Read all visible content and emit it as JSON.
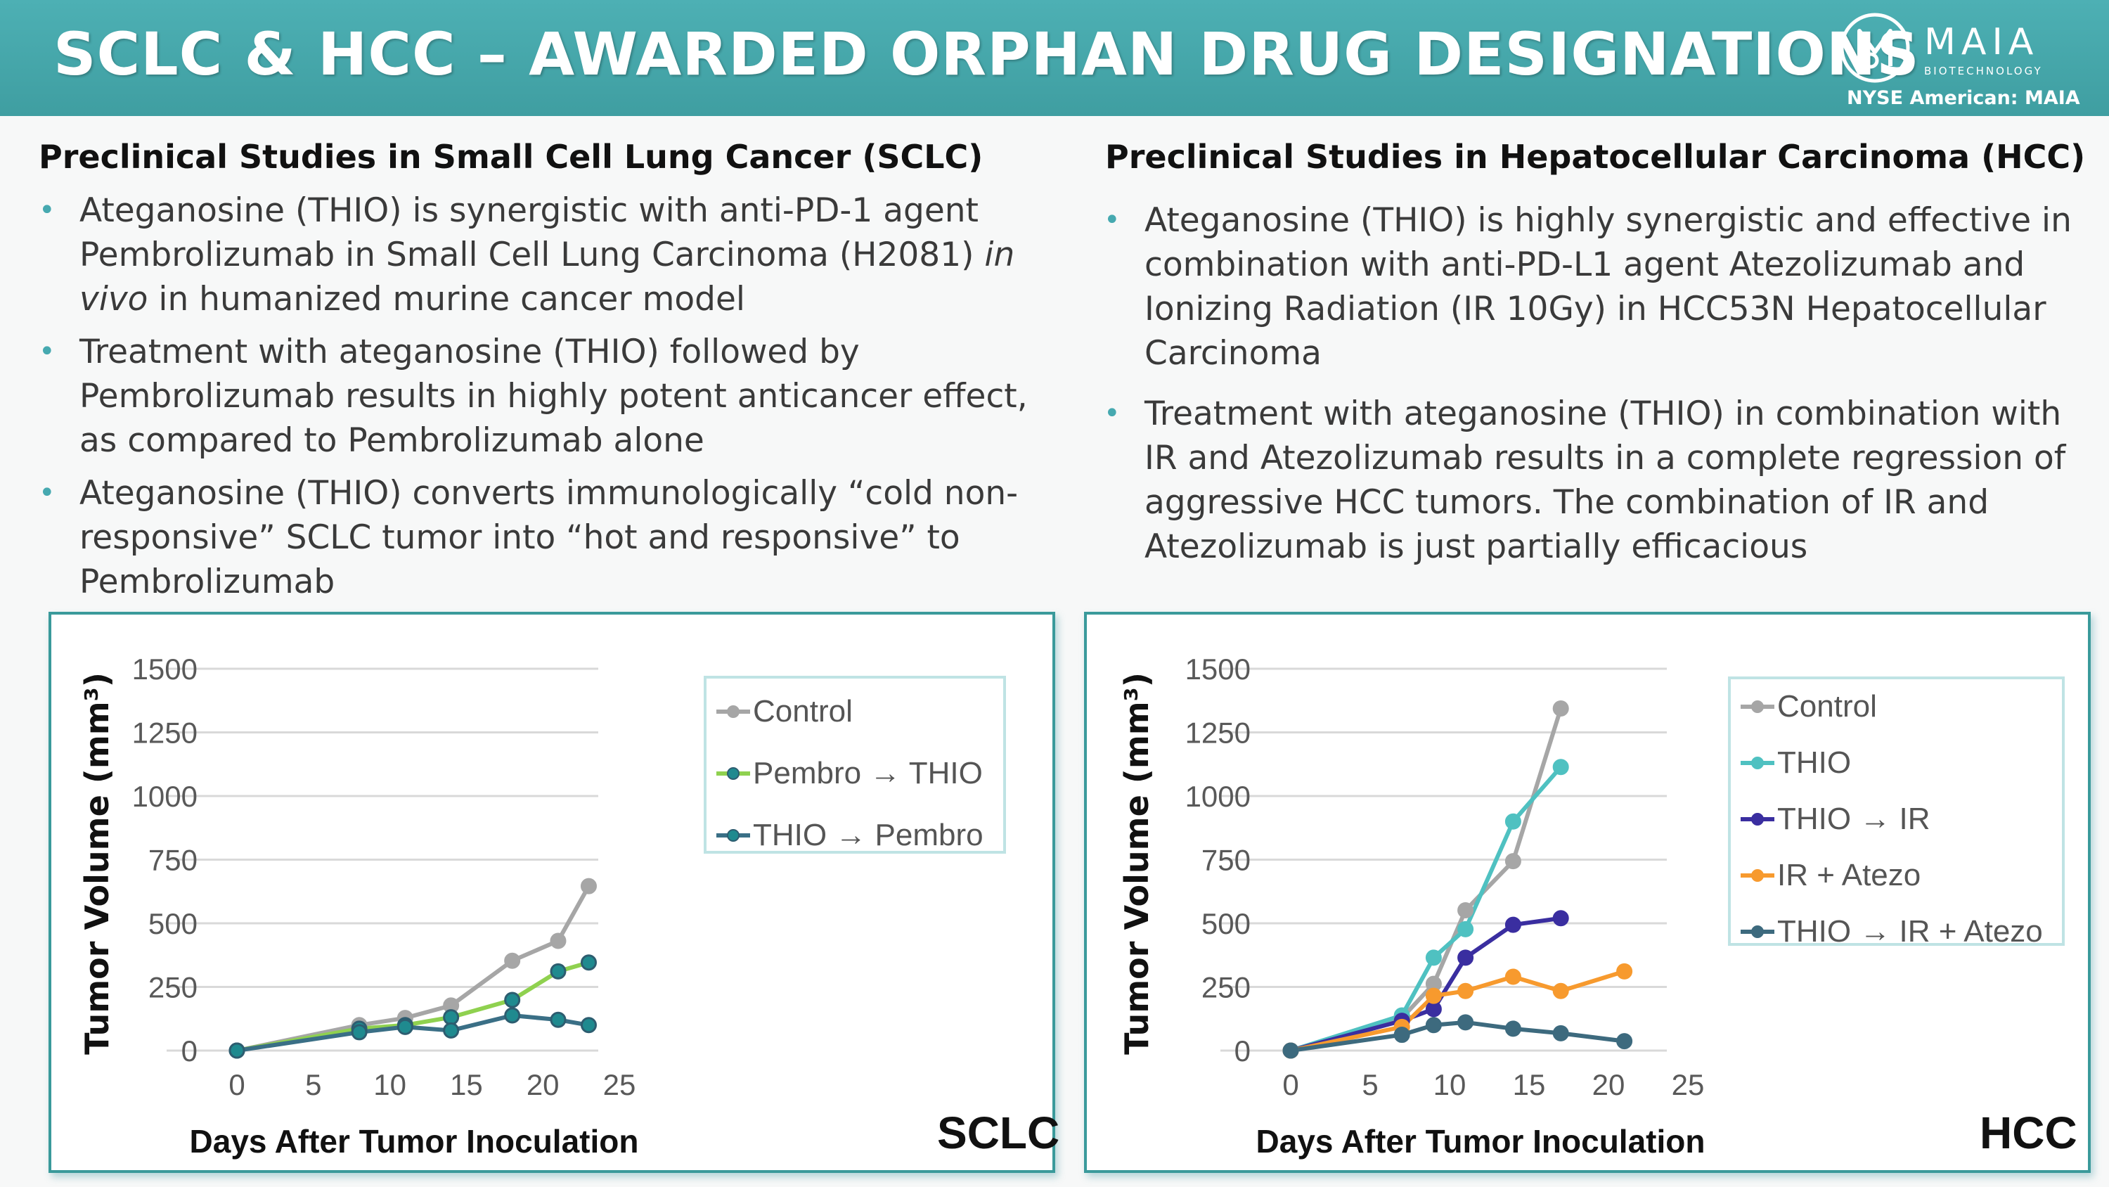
{
  "header": {
    "title": "SCLC & HCC – AWARDED ORPHAN DRUG DESIGNATIONS",
    "logo_text": "MAIA",
    "logo_subtext": "BIOTECHNOLOGY",
    "exchange": "NYSE American: MAIA"
  },
  "colors": {
    "accent": "#46a9b0",
    "header": "#45a7ab",
    "box_border": "#3a9a9b"
  },
  "left": {
    "heading": "Preclinical Studies in Small Cell Lung Cancer (SCLC)",
    "b1": {
      "l1": "Ateganosine (THIO) is synergistic with anti-PD-1 agent",
      "l2a": "Pembrolizumab in Small Cell Lung Carcinoma (H2081) ",
      "l2b": "in",
      "l3a": "vivo",
      "l3b": " in humanized murine cancer model"
    },
    "b2": [
      "Treatment with ateganosine (THIO) followed by",
      "Pembrolizumab results in highly potent anticancer effect,",
      "as compared to Pembrolizumab alone"
    ],
    "b3": [
      "Ateganosine (THIO) converts immunologically “cold non-",
      "responsive” SCLC tumor into “hot and responsive” to",
      "Pembrolizumab"
    ]
  },
  "right": {
    "heading": "Preclinical Studies in Hepatocellular Carcinoma (HCC)",
    "b1": [
      "Ateganosine (THIO) is highly synergistic and effective in",
      "combination with anti-PD-L1 agent Atezolizumab and",
      "Ionizing Radiation (IR 10Gy) in HCC53N Hepatocellular",
      "Carcinoma"
    ],
    "b2": [
      "Treatment with ateganosine (THIO) in combination with",
      "IR and Atezolizumab results in a complete regression of",
      "aggressive HCC tumors. The combination of IR and",
      "Atezolizumab is just partially efficacious"
    ]
  },
  "chart_data": [
    {
      "type": "line",
      "tag": "SCLC",
      "xlabel": "Days After Tumor Inoculation",
      "ylabel": "Tumor Volume (mm³)",
      "xlim": [
        0,
        25
      ],
      "ylim": [
        0,
        1500
      ],
      "xticks": [
        "0",
        "5",
        "10",
        "15",
        "20",
        "25"
      ],
      "yticks": [
        "0",
        "250",
        "500",
        "750",
        "1000",
        "1250",
        "1500"
      ],
      "grid": true,
      "legend": "top-right",
      "series": [
        {
          "name": "Control",
          "color": "#a6a6a6",
          "marker": "#a6a6a6",
          "x": [
            0,
            8,
            11,
            14,
            18,
            21,
            23
          ],
          "y": [
            0,
            100,
            128,
            177,
            353,
            431,
            646
          ]
        },
        {
          "name": "Pembro → THIO",
          "color": "#8fd14f",
          "marker": "#1f8a8f",
          "x": [
            0,
            8,
            11,
            14,
            18,
            21,
            23
          ],
          "y": [
            0,
            86,
            100,
            131,
            199,
            311,
            346
          ]
        },
        {
          "name": "THIO → Pembro",
          "color": "#3a6f86",
          "marker": "#1f8a8f",
          "x": [
            0,
            8,
            11,
            14,
            18,
            21,
            23
          ],
          "y": [
            0,
            72,
            93,
            79,
            138,
            121,
            100
          ]
        }
      ]
    },
    {
      "type": "line",
      "tag": "HCC",
      "xlabel": "Days After Tumor Inoculation",
      "ylabel": "Tumor Volume (mm³)",
      "xlim": [
        0,
        25
      ],
      "ylim": [
        0,
        1500
      ],
      "xticks": [
        "0",
        "5",
        "10",
        "15",
        "20",
        "25"
      ],
      "yticks": [
        "0",
        "250",
        "500",
        "750",
        "1000",
        "1250",
        "1500"
      ],
      "grid": true,
      "legend": "top-right",
      "series": [
        {
          "name": "Control",
          "color": "#a6a6a6",
          "marker": "#a6a6a6",
          "x": [
            0,
            7,
            9,
            11,
            14,
            17
          ],
          "y": [
            0,
            128,
            262,
            551,
            744,
            1344
          ]
        },
        {
          "name": "THIO",
          "color": "#4fc1c1",
          "marker": "#4fc1c1",
          "x": [
            0,
            7,
            9,
            11,
            14,
            17
          ],
          "y": [
            0,
            138,
            365,
            477,
            900,
            1114
          ]
        },
        {
          "name": "THIO → IR",
          "color": "#3a2ea0",
          "marker": "#3a2ea0",
          "x": [
            0,
            7,
            9,
            11,
            14,
            17
          ],
          "y": [
            0,
            117,
            163,
            365,
            494,
            520
          ]
        },
        {
          "name": "IR + Atezo",
          "color": "#f79a2e",
          "marker": "#f79a2e",
          "x": [
            0,
            7,
            9,
            11,
            14,
            17,
            21
          ],
          "y": [
            0,
            93,
            215,
            234,
            290,
            234,
            311
          ]
        },
        {
          "name": "THIO → IR + Atezo",
          "color": "#3d6a7e",
          "marker": "#3d6a7e",
          "x": [
            0,
            7,
            9,
            11,
            14,
            17,
            21
          ],
          "y": [
            0,
            62,
            100,
            111,
            86,
            68,
            37
          ]
        }
      ]
    }
  ]
}
